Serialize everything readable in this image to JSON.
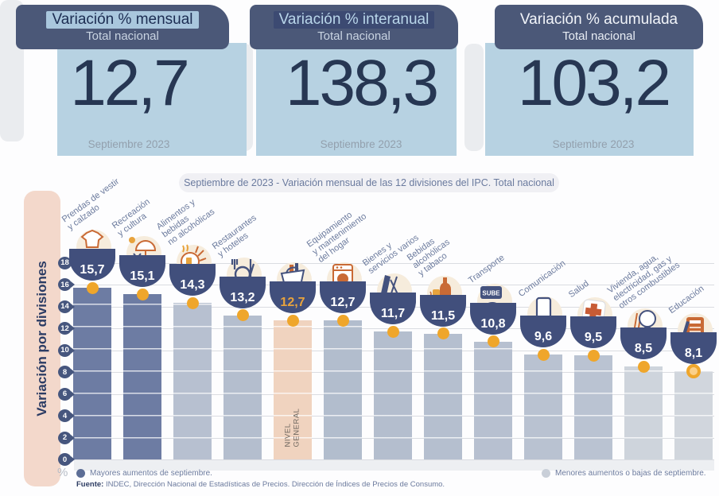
{
  "cards": [
    {
      "title": "Variación % mensual",
      "subtitle": "Total nacional",
      "value": "12,7",
      "period": "Septiembre 2023"
    },
    {
      "title": "Variación % interanual",
      "subtitle": "Total nacional",
      "value": "138,3",
      "period": "Septiembre 2023"
    },
    {
      "title": "Variación % acumulada",
      "subtitle": "Total nacional",
      "value": "103,2",
      "period": "Septiembre 2023"
    }
  ],
  "chart": {
    "header": "Septiembre de 2023 - Variación mensual de las 12 divisiones del IPC. Total nacional",
    "side_label": "Variación por divisiones",
    "y_unit_label": "%",
    "legend": [
      {
        "label": "Mayores aumentos de septiembre.",
        "color": "#5d6e96"
      },
      {
        "label": "Menores aumentos o bajas de septiembre.",
        "color": "#c9cfd8"
      }
    ],
    "source_bold": "Fuente:",
    "source_rest": " INDEC, Dirección Nacional de Estadísticas de Precios. Dirección de Índices de Precios de Consumo."
  },
  "chart_data": {
    "type": "bar",
    "title": "Septiembre de 2023 - Variación mensual de las 12 divisiones del IPC. Total nacional",
    "xlabel": "",
    "ylabel": "Variación por divisiones (%)",
    "ylim": [
      0,
      18
    ],
    "ytick_step": 2,
    "grid": true,
    "categories": [
      "Prendas de vestir y calzado",
      "Recreación y cultura",
      "Alimentos y bebidas no alcohólicas",
      "Restaurantes y hoteles",
      "Nivel general",
      "Equipamiento y mantenimiento del hogar",
      "Bienes y servicios varios",
      "Bebidas alcohólicas y tabaco",
      "Transporte",
      "Comunicación",
      "Salud",
      "Vivienda, agua, electricidad, gas y otros combustibles",
      "Educación"
    ],
    "values": [
      15.7,
      15.1,
      14.3,
      13.2,
      12.7,
      12.7,
      11.7,
      11.5,
      10.8,
      9.6,
      9.5,
      8.5,
      8.1
    ],
    "value_labels": [
      "15,7",
      "15,1",
      "14,3",
      "13,2",
      "12,7",
      "12,7",
      "11,7",
      "11,5",
      "10,8",
      "9,6",
      "9,5",
      "8,5",
      "8,1"
    ],
    "bar_colors": [
      "#6d7ca3",
      "#6d7ca3",
      "#b7c0d0",
      "#b4bece",
      "#f0d3bf",
      "#b2bdcd",
      "#b4bece",
      "#b5bfcf",
      "#b7c0d0",
      "#b9c2d1",
      "#bac3d2",
      "#ced4dc",
      "#d1d6dd"
    ],
    "dot_color": "#efa62b",
    "icons": [
      "clothing-icon",
      "umbrella-icon",
      "chicken-icon",
      "cutlery-icon",
      "basket-icon",
      "washing-machine-icon",
      "scissors-comb-icon",
      "bottles-icon",
      "sube-card-icon",
      "smartphone-icon",
      "health-cross-icon",
      "lightbulb-icon",
      "notebook-pencil-icon"
    ],
    "label_lines": [
      [
        "Prendas de vestir",
        "y calzado"
      ],
      [
        "Recreación",
        "y cultura"
      ],
      [
        "Alimentos y",
        "bebidas",
        "no alcohólicas"
      ],
      [
        "Restaurantes",
        "y hoteles"
      ],
      [],
      [
        "Equipamiento",
        "y mantenimiento",
        "del hogar"
      ],
      [
        "Bienes y",
        "servicios varios"
      ],
      [
        "Bebidas",
        "alcohólicas",
        "y tabaco"
      ],
      [
        "Transporte"
      ],
      [
        "Comunicación"
      ],
      [
        "Salud"
      ],
      [
        "Vivienda, agua,",
        "electricidad, gas y",
        "otros combustibles"
      ],
      [
        "Educación"
      ]
    ],
    "highlight_index": 4,
    "highlight_label": [
      "NIVEL",
      "GENERAL"
    ],
    "legend_position": "bottom"
  }
}
